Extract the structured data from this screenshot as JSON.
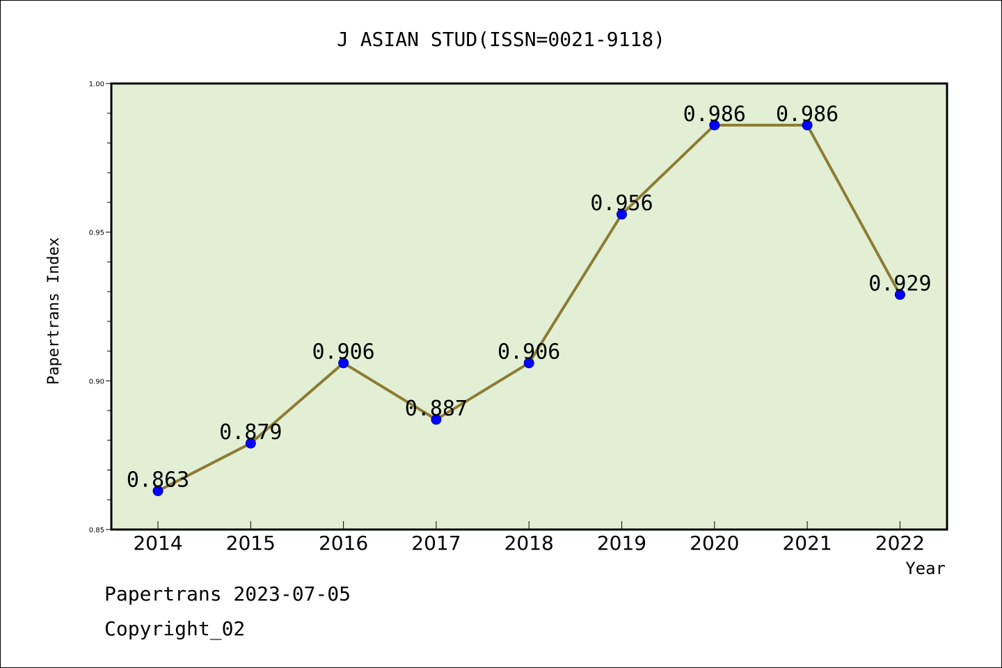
{
  "footer": {
    "stamp": "Papertrans 2023-07-05",
    "copyright": "Copyright_02"
  },
  "chart_data": {
    "type": "line",
    "title": "J ASIAN STUD(ISSN=0021-9118)",
    "xlabel": "Year",
    "ylabel": "Papertrans Index",
    "categories": [
      "2014",
      "2015",
      "2016",
      "2017",
      "2018",
      "2019",
      "2020",
      "2021",
      "2022"
    ],
    "values": [
      0.863,
      0.879,
      0.906,
      0.887,
      0.906,
      0.956,
      0.986,
      0.986,
      0.929
    ],
    "data_labels": [
      "0.863",
      "0.879",
      "0.906",
      "0.887",
      "0.906",
      "0.956",
      "0.986",
      "0.986",
      "0.929"
    ],
    "ylim": [
      0.85,
      1.0
    ],
    "yticks": [
      "0.85",
      "0.90",
      "0.95",
      "1.00"
    ],
    "grid": false,
    "colors": {
      "plot_background": "#e2efd5",
      "line": "#8b7d32",
      "marker": "#0000ff"
    }
  }
}
